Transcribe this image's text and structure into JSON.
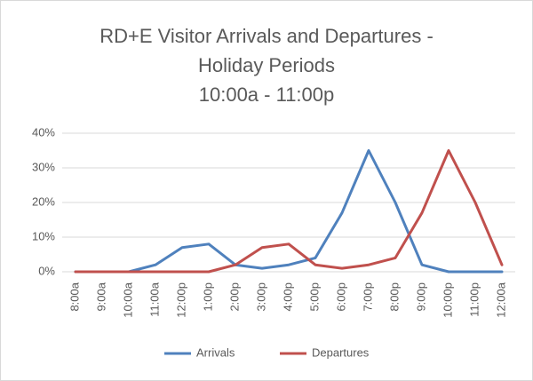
{
  "chart_data": {
    "type": "line",
    "title": [
      "RD+E Visitor Arrivals and Departures -",
      "Holiday Periods",
      "10:00a - 11:00p"
    ],
    "categories": [
      "8:00a",
      "9:00a",
      "10:00a",
      "11:00a",
      "12:00p",
      "1:00p",
      "2:00p",
      "3:00p",
      "4:00p",
      "5:00p",
      "6:00p",
      "7:00p",
      "8:00p",
      "9:00p",
      "10:00p",
      "11:00p",
      "12:00a"
    ],
    "series": [
      {
        "name": "Arrivals",
        "color": "#4f81bd",
        "values": [
          0,
          0,
          0,
          2,
          7,
          8,
          2,
          1,
          2,
          4,
          17,
          35,
          20,
          2,
          0,
          0,
          0
        ]
      },
      {
        "name": "Departures",
        "color": "#c0504d",
        "values": [
          0,
          0,
          0,
          0,
          0,
          0,
          2,
          7,
          8,
          2,
          1,
          2,
          4,
          17,
          35,
          20,
          2
        ]
      }
    ],
    "ylim": [
      0,
      40
    ],
    "yticks": [
      {
        "value": 0,
        "label": "0%"
      },
      {
        "value": 10,
        "label": "10%"
      },
      {
        "value": 20,
        "label": "20%"
      },
      {
        "value": 30,
        "label": "30%"
      },
      {
        "value": 40,
        "label": "40%"
      }
    ],
    "grid": true,
    "legend": "bottom"
  }
}
